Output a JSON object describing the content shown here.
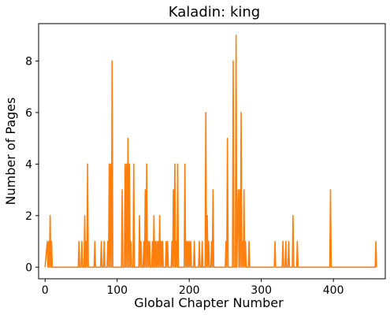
{
  "chart_data": {
    "type": "line",
    "title": "Kaladin: king",
    "xlabel": "Global Chapter Number",
    "ylabel": "Number of Pages",
    "xlim": [
      -9,
      472
    ],
    "ylim": [
      -0.45,
      9.45
    ],
    "xticks": [
      0,
      100,
      200,
      300,
      400
    ],
    "yticks": [
      0,
      2,
      4,
      6,
      8
    ],
    "grid": false,
    "series": [
      {
        "color": "#ff7f0e",
        "points": [
          [
            0,
            0
          ],
          [
            3,
            1
          ],
          [
            4,
            0
          ],
          [
            5,
            1
          ],
          [
            6,
            0
          ],
          [
            7,
            2
          ],
          [
            8,
            0
          ],
          [
            9,
            1
          ],
          [
            10,
            0
          ],
          [
            46,
            0
          ],
          [
            47,
            1
          ],
          [
            48,
            0
          ],
          [
            50,
            0
          ],
          [
            51,
            1
          ],
          [
            52,
            0
          ],
          [
            54,
            0
          ],
          [
            55,
            2
          ],
          [
            56,
            0
          ],
          [
            57,
            1
          ],
          [
            58,
            0
          ],
          [
            59,
            4
          ],
          [
            60,
            0
          ],
          [
            68,
            0
          ],
          [
            69,
            1
          ],
          [
            70,
            0
          ],
          [
            77,
            0
          ],
          [
            78,
            1
          ],
          [
            79,
            0
          ],
          [
            81,
            0
          ],
          [
            82,
            1
          ],
          [
            83,
            0
          ],
          [
            86,
            0
          ],
          [
            87,
            1
          ],
          [
            88,
            0
          ],
          [
            89,
            4
          ],
          [
            90,
            0
          ],
          [
            91,
            4
          ],
          [
            92,
            0
          ],
          [
            93,
            8
          ],
          [
            94,
            0
          ],
          [
            106,
            0
          ],
          [
            107,
            3
          ],
          [
            108,
            0
          ],
          [
            110,
            0
          ],
          [
            111,
            4
          ],
          [
            112,
            0
          ],
          [
            113,
            4
          ],
          [
            114,
            0
          ],
          [
            115,
            5
          ],
          [
            116,
            0
          ],
          [
            117,
            4
          ],
          [
            118,
            0
          ],
          [
            119,
            1
          ],
          [
            120,
            0
          ],
          [
            122,
            0
          ],
          [
            123,
            4
          ],
          [
            124,
            0
          ],
          [
            130,
            0
          ],
          [
            131,
            2
          ],
          [
            132,
            0
          ],
          [
            133,
            1
          ],
          [
            134,
            0
          ],
          [
            136,
            0
          ],
          [
            137,
            1
          ],
          [
            138,
            0
          ],
          [
            139,
            3
          ],
          [
            140,
            0
          ],
          [
            141,
            4
          ],
          [
            142,
            0
          ],
          [
            143,
            1
          ],
          [
            144,
            0
          ],
          [
            145,
            1
          ],
          [
            146,
            0
          ],
          [
            148,
            0
          ],
          [
            149,
            1
          ],
          [
            150,
            0
          ],
          [
            151,
            2
          ],
          [
            152,
            0
          ],
          [
            153,
            1
          ],
          [
            154,
            0
          ],
          [
            155,
            1
          ],
          [
            156,
            0
          ],
          [
            157,
            1
          ],
          [
            158,
            0
          ],
          [
            159,
            2
          ],
          [
            160,
            0
          ],
          [
            161,
            1
          ],
          [
            162,
            0
          ],
          [
            163,
            1
          ],
          [
            164,
            0
          ],
          [
            167,
            0
          ],
          [
            168,
            1
          ],
          [
            169,
            0
          ],
          [
            170,
            1
          ],
          [
            171,
            0
          ],
          [
            175,
            0
          ],
          [
            176,
            1
          ],
          [
            177,
            0
          ],
          [
            178,
            3
          ],
          [
            179,
            0
          ],
          [
            180,
            4
          ],
          [
            181,
            0
          ],
          [
            182,
            1
          ],
          [
            183,
            0
          ],
          [
            184,
            4
          ],
          [
            185,
            0
          ],
          [
            193,
            0
          ],
          [
            194,
            4
          ],
          [
            195,
            0
          ],
          [
            196,
            1
          ],
          [
            197,
            0
          ],
          [
            198,
            1
          ],
          [
            199,
            0
          ],
          [
            200,
            1
          ],
          [
            201,
            0
          ],
          [
            202,
            1
          ],
          [
            203,
            0
          ],
          [
            206,
            0
          ],
          [
            207,
            1
          ],
          [
            208,
            0
          ],
          [
            213,
            0
          ],
          [
            214,
            1
          ],
          [
            215,
            0
          ],
          [
            217,
            0
          ],
          [
            218,
            1
          ],
          [
            219,
            0
          ],
          [
            222,
            0
          ],
          [
            223,
            6
          ],
          [
            224,
            0
          ],
          [
            225,
            2
          ],
          [
            226,
            0
          ],
          [
            227,
            1
          ],
          [
            228,
            0
          ],
          [
            230,
            0
          ],
          [
            231,
            1
          ],
          [
            232,
            0
          ],
          [
            233,
            3
          ],
          [
            234,
            0
          ],
          [
            250,
            0
          ],
          [
            251,
            1
          ],
          [
            252,
            0
          ],
          [
            253,
            5
          ],
          [
            254,
            0
          ],
          [
            260,
            0
          ],
          [
            261,
            8
          ],
          [
            262,
            0
          ],
          [
            264,
            0
          ],
          [
            265,
            9
          ],
          [
            266,
            0
          ],
          [
            268,
            3
          ],
          [
            269,
            0
          ],
          [
            270,
            3
          ],
          [
            271,
            0
          ],
          [
            272,
            6
          ],
          [
            273,
            0
          ],
          [
            274,
            1
          ],
          [
            275,
            0
          ],
          [
            276,
            3
          ],
          [
            277,
            0
          ],
          [
            278,
            1
          ],
          [
            279,
            0
          ],
          [
            282,
            0
          ],
          [
            283,
            1
          ],
          [
            284,
            0
          ],
          [
            318,
            0
          ],
          [
            319,
            1
          ],
          [
            320,
            0
          ],
          [
            329,
            0
          ],
          [
            330,
            1
          ],
          [
            331,
            0
          ],
          [
            333,
            0
          ],
          [
            334,
            1
          ],
          [
            335,
            0
          ],
          [
            337,
            0
          ],
          [
            338,
            1
          ],
          [
            339,
            0
          ],
          [
            343,
            0
          ],
          [
            344,
            2
          ],
          [
            345,
            0
          ],
          [
            349,
            0
          ],
          [
            350,
            1
          ],
          [
            351,
            0
          ],
          [
            395,
            0
          ],
          [
            396,
            3
          ],
          [
            397,
            0
          ],
          [
            458,
            0
          ],
          [
            459,
            1
          ],
          [
            460,
            0
          ]
        ]
      }
    ]
  }
}
